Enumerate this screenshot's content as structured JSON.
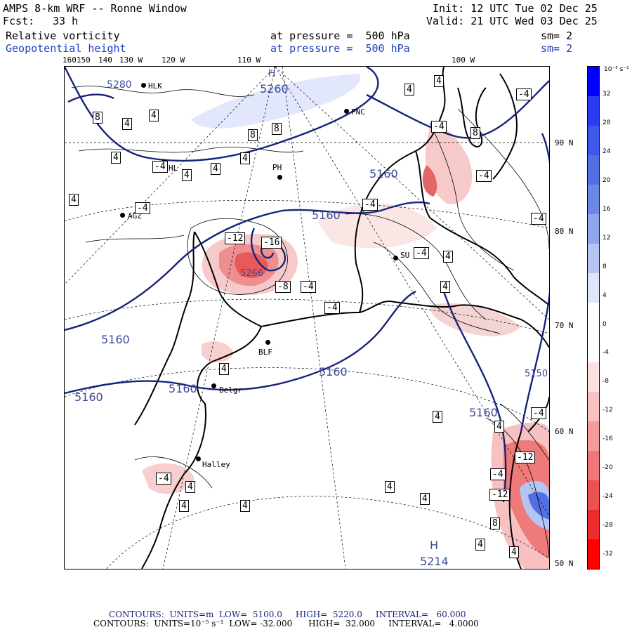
{
  "header": {
    "title": "AMPS 8-km WRF -- Ronne Window",
    "fcst_label": "Fcst:",
    "fcst_value": "33 h",
    "init": "Init: 12 UTC Tue 02 Dec 25",
    "valid": "Valid: 21 UTC Wed 03 Dec 25",
    "field1_name": "Relative vorticity",
    "field1_level": "at pressure =  500 hPa",
    "field1_sm": "sm= 2",
    "field2_name": "Geopotential height",
    "field2_level": "at pressure =  500 hPa",
    "field2_sm": "sm= 2"
  },
  "longitude_labels": [
    "160150",
    "140",
    "130 W",
    "120 W",
    "110 W",
    "100 W"
  ],
  "latitude_labels": [
    "90 N",
    "80 N",
    "70 N",
    "60 N",
    "50 N"
  ],
  "colorbar": {
    "unit_label": "10⁻⁵ s⁻¹",
    "ticks": [
      "32",
      "28",
      "24",
      "20",
      "16",
      "12",
      "8",
      "4",
      "0",
      "-4",
      "-8",
      "-12",
      "-16",
      "-20",
      "-24",
      "-28",
      "-32"
    ],
    "colors": [
      "#0000ff",
      "#2a3bf2",
      "#3d58ea",
      "#5270e4",
      "#6b88e6",
      "#8ea4ec",
      "#b6c4f4",
      "#dfe5fb",
      "#ffffff",
      "#ffffff",
      "#fbe0e0",
      "#f7c1c1",
      "#f39c9c",
      "#ef7777",
      "#ed5252",
      "#ee2c2c",
      "#ff0000"
    ]
  },
  "height_labels": [
    {
      "text": "5260"
    },
    {
      "text": "5160"
    },
    {
      "text": "5160"
    },
    {
      "text": "5160"
    },
    {
      "text": "5160"
    },
    {
      "text": "5160"
    },
    {
      "text": "5160"
    },
    {
      "text": "5160"
    },
    {
      "text": "5214"
    },
    {
      "text": "H"
    },
    {
      "text": "H"
    },
    {
      "text": "5280"
    },
    {
      "text": "5266"
    },
    {
      "text": "5150"
    }
  ],
  "vorticity_labels": [
    {
      "text": "4"
    },
    {
      "text": "4"
    },
    {
      "text": "8"
    },
    {
      "text": "8"
    },
    {
      "text": "8"
    },
    {
      "text": "4"
    },
    {
      "text": "4"
    },
    {
      "text": "-4"
    },
    {
      "text": "4"
    },
    {
      "text": "4"
    },
    {
      "text": "4"
    },
    {
      "text": "-4"
    },
    {
      "text": "4"
    },
    {
      "text": "4"
    },
    {
      "text": "-4"
    },
    {
      "text": "8"
    },
    {
      "text": "-4"
    },
    {
      "text": "-4"
    },
    {
      "text": "-12"
    },
    {
      "text": "-16"
    },
    {
      "text": "-8"
    },
    {
      "text": "-4"
    },
    {
      "text": "-4"
    },
    {
      "text": "-4"
    },
    {
      "text": "4"
    },
    {
      "text": "-4"
    },
    {
      "text": "4"
    },
    {
      "text": "4"
    },
    {
      "text": "-4"
    },
    {
      "text": "4"
    },
    {
      "text": "4"
    },
    {
      "text": "4"
    },
    {
      "text": "4"
    },
    {
      "text": "4"
    },
    {
      "text": "4"
    },
    {
      "text": "-12"
    },
    {
      "text": "-4"
    },
    {
      "text": "-12"
    },
    {
      "text": "8"
    },
    {
      "text": "4"
    },
    {
      "text": "4"
    },
    {
      "text": "-4"
    },
    {
      "text": "4"
    },
    {
      "text": "-4"
    }
  ],
  "stations": [
    {
      "name": "HLK"
    },
    {
      "name": "PNC"
    },
    {
      "name": "PH"
    },
    {
      "name": "AGZ"
    },
    {
      "name": "HL"
    },
    {
      "name": "SU"
    },
    {
      "name": "BLF"
    },
    {
      "name": "Belgr"
    },
    {
      "name": "Halley"
    }
  ],
  "footer": {
    "line1": "CONTOURS:  UNITS=m  LOW=  5100.0     HIGH=  5220.0     INTERVAL=   60.000",
    "line2": "CONTOURS:  UNITS=10⁻⁵ s⁻¹  LOW= -32.000      HIGH=  32.000     INTERVAL=   4.0000"
  }
}
